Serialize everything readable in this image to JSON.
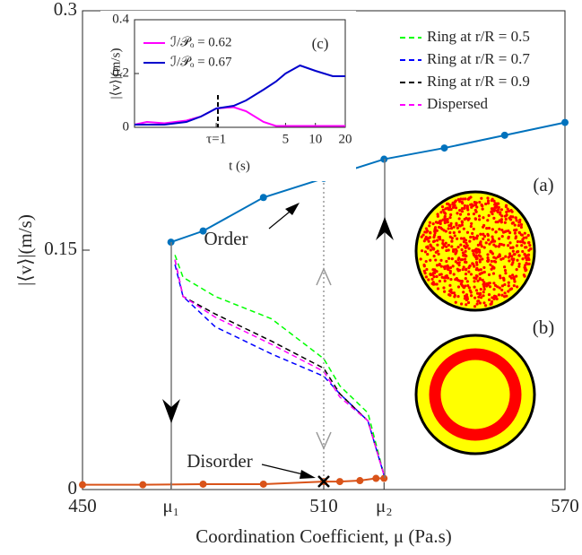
{
  "chart_data": [
    {
      "type": "line",
      "xlabel": "Coordination Coefficient, μ (Pa.s)",
      "ylabel": "|⟨v⟩|(m/s)",
      "xlim": [
        450,
        570
      ],
      "ylim": [
        0,
        0.3
      ],
      "xticks": [
        450,
        {
          "value": 472,
          "label": "μ₁"
        },
        510,
        {
          "value": 525,
          "label": "μ₂"
        },
        570
      ],
      "yticks": [
        0,
        0.15,
        0.3
      ],
      "legend": "upper right",
      "annotations": [
        "Order",
        "Disorder",
        "(a)",
        "(b)"
      ],
      "series": [
        {
          "color": "#0072bd",
          "marker": true,
          "x": [
            472,
            480,
            495,
            510,
            525,
            540,
            555,
            570
          ],
          "values": [
            0.155,
            0.162,
            0.183,
            0.195,
            0.207,
            0.214,
            0.222,
            0.23
          ]
        },
        {
          "color": "#d95319",
          "marker": true,
          "x": [
            450,
            465,
            480,
            495,
            510,
            514,
            519,
            523,
            525
          ],
          "values": [
            0.003,
            0.003,
            0.0034,
            0.0034,
            0.005,
            0.005,
            0.0056,
            0.007,
            0.007
          ]
        },
        {
          "name": "Ring at r/R = 0.5",
          "color": "#00ff00",
          "dash": true,
          "x": [
            473,
            475,
            483,
            497,
            510,
            514,
            521,
            525
          ],
          "values": [
            0.147,
            0.133,
            0.121,
            0.107,
            0.082,
            0.065,
            0.048,
            0.009
          ]
        },
        {
          "name": "Ring at r/R = 0.7",
          "color": "#0000ff",
          "dash": true,
          "x": [
            473,
            475,
            483,
            497,
            510,
            514,
            521,
            525
          ],
          "values": [
            0.141,
            0.121,
            0.102,
            0.085,
            0.071,
            0.06,
            0.043,
            0.009
          ]
        },
        {
          "name": "Ring at r/R = 0.9",
          "color": "#000000",
          "dash": true,
          "x": [
            473,
            475,
            483,
            497,
            510,
            514,
            521,
            525
          ],
          "values": [
            0.144,
            0.121,
            0.11,
            0.093,
            0.076,
            0.06,
            0.043,
            0.009
          ]
        },
        {
          "name": "Dispersed",
          "color": "#ff00ff",
          "dash": true,
          "x": [
            473,
            475,
            483,
            497,
            510,
            514,
            521,
            525
          ],
          "values": [
            0.144,
            0.121,
            0.108,
            0.091,
            0.074,
            0.058,
            0.043,
            0.009
          ]
        }
      ]
    },
    {
      "type": "line",
      "xlabel": "t (s)",
      "ylabel": "|⟨v⟩|(m/s)",
      "xscale": "log",
      "xlim": [
        0.15,
        20
      ],
      "ylim": [
        0,
        0.4
      ],
      "xticks": [
        {
          "value": 1,
          "label": "τ=1"
        },
        5,
        10,
        20
      ],
      "yticks": [
        0,
        0.2,
        0.4
      ],
      "legend": "upper left",
      "annotations": [
        "(c)"
      ],
      "series": [
        {
          "name": "ℐ/𝒫ₒ = 0.62",
          "color": "#ff00ff",
          "x": [
            0.15,
            0.2,
            0.3,
            0.5,
            0.7,
            1,
            1.5,
            2,
            3,
            4,
            5,
            7,
            10,
            15,
            20
          ],
          "values": [
            0.01,
            0.02,
            0.015,
            0.025,
            0.04,
            0.07,
            0.075,
            0.06,
            0.02,
            0.005,
            0.005,
            0.005,
            0.005,
            0.005,
            0.005
          ]
        },
        {
          "name": "ℐ/𝒫ₒ = 0.67",
          "color": "#0000cc",
          "x": [
            0.15,
            0.2,
            0.3,
            0.5,
            0.7,
            1,
            1.5,
            2,
            3,
            4,
            5,
            7,
            10,
            15,
            20
          ],
          "values": [
            0.01,
            0.01,
            0.01,
            0.02,
            0.04,
            0.07,
            0.08,
            0.1,
            0.14,
            0.17,
            0.2,
            0.23,
            0.21,
            0.19,
            0.19
          ]
        }
      ]
    }
  ]
}
